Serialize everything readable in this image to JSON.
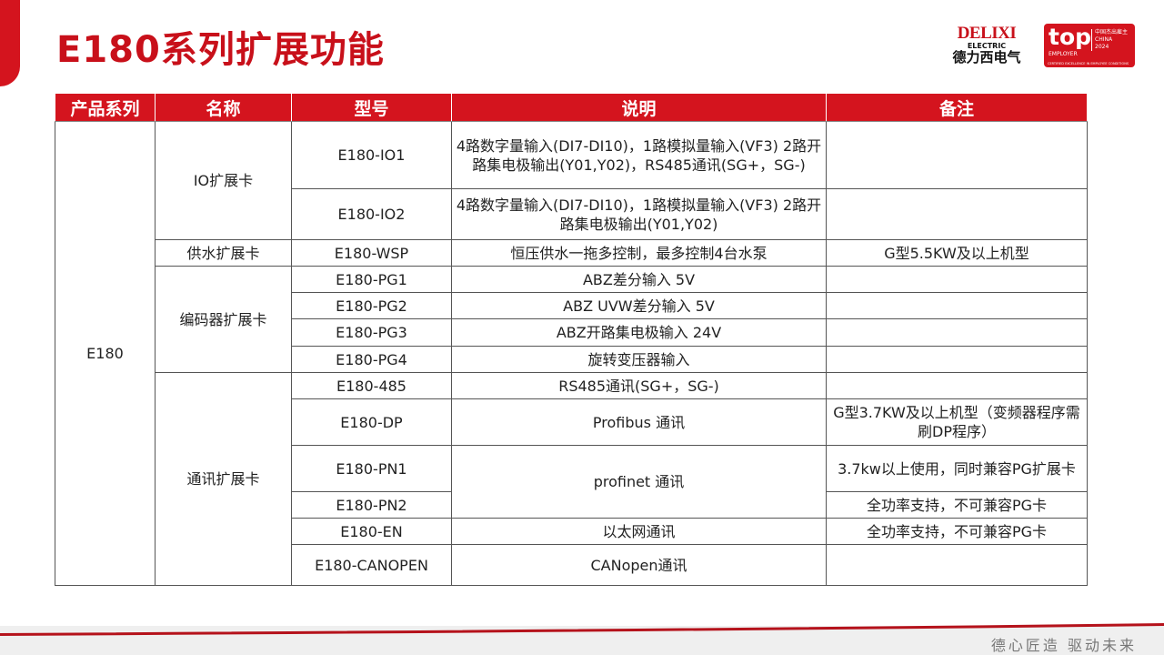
{
  "title": "E180系列扩展功能",
  "logo_delixi": {
    "brand": "DELIXI",
    "sub": "ELECTRIC",
    "cn": "德力西电气"
  },
  "logo_top": {
    "word": "top",
    "employer": "EMPLOYER",
    "cn": "中国杰出雇主",
    "country": "CHINA",
    "year": "2024",
    "footer": "CERTIFIED EXCELLENCE IN EMPLOYEE CONDITIONS"
  },
  "colors": {
    "accent": "#d4141e"
  },
  "table": {
    "headers": [
      "产品系列",
      "名称",
      "型号",
      "说明",
      "备注"
    ],
    "series": "E180",
    "groups": [
      {
        "name": "IO扩展卡",
        "rows": [
          {
            "model": "E180-IO1",
            "desc": "4路数字量输入(DI7-DI10)，1路模拟量输入(VF3) 2路开路集电极输出(Y01,Y02)，RS485通讯(SG+，SG-)",
            "note": ""
          },
          {
            "model": "E180-IO2",
            "desc": "4路数字量输入(DI7-DI10)，1路模拟量输入(VF3) 2路开路集电极输出(Y01,Y02)",
            "note": ""
          }
        ]
      },
      {
        "name": "供水扩展卡",
        "rows": [
          {
            "model": "E180-WSP",
            "desc": "恒压供水一拖多控制，最多控制4台水泵",
            "note": "G型5.5KW及以上机型"
          }
        ]
      },
      {
        "name": "编码器扩展卡",
        "rows": [
          {
            "model": "E180-PG1",
            "desc": "ABZ差分输入 5V",
            "note": ""
          },
          {
            "model": "E180-PG2",
            "desc": "ABZ UVW差分输入 5V",
            "note": ""
          },
          {
            "model": "E180-PG3",
            "desc": "ABZ开路集电极输入 24V",
            "note": ""
          },
          {
            "model": "E180-PG4",
            "desc": "旋转变压器输入",
            "note": ""
          }
        ]
      },
      {
        "name": "通讯扩展卡",
        "rows": [
          {
            "model": "E180-485",
            "desc": "RS485通讯(SG+，SG-)",
            "note": ""
          },
          {
            "model": "E180-DP",
            "desc": "Profibus 通讯",
            "note": "G型3.7KW及以上机型（变频器程序需刷DP程序）"
          },
          {
            "model": "E180-PN1",
            "desc": "profinet 通讯",
            "note": "3.7kw以上使用，同时兼容PG扩展卡"
          },
          {
            "model": "E180-PN2",
            "desc": "",
            "note": "全功率支持，不可兼容PG卡"
          },
          {
            "model": "E180-EN",
            "desc": "以太网通讯",
            "note": "全功率支持，不可兼容PG卡"
          },
          {
            "model": "E180-CANOPEN",
            "desc": "CANopen通讯",
            "note": ""
          }
        ]
      }
    ]
  },
  "slogan": "德心匠造  驱动未来"
}
